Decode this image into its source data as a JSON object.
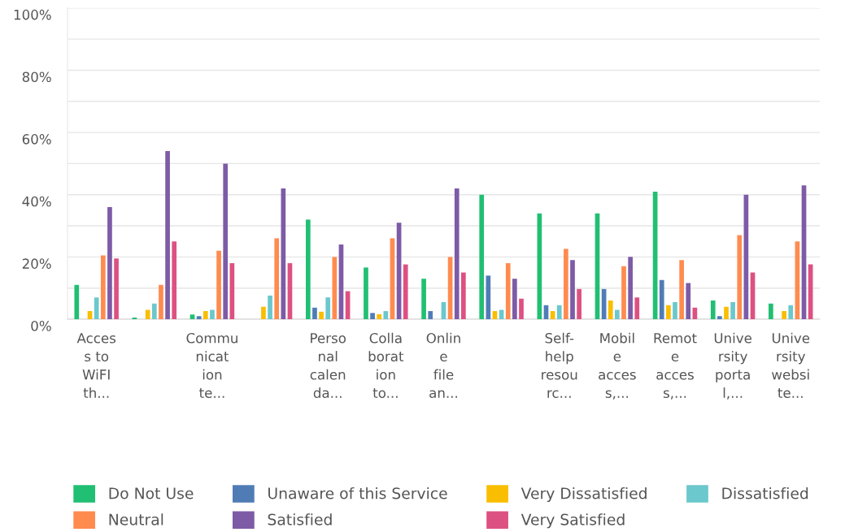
{
  "chart_data": {
    "type": "bar",
    "categories": [
      "Access to WiFI th...",
      null,
      "Communication te...",
      null,
      "Personal calenda...",
      "Collaboration to...",
      "Online file an...",
      null,
      "Self-help resourc...",
      "Mobile access,...",
      "Remote access,...",
      "University portal,...",
      "University website..."
    ],
    "series": [
      {
        "name": "Do Not Use",
        "color": "#21bf73",
        "values": [
          11,
          0.5,
          1.5,
          null,
          32,
          16.6,
          13,
          40,
          34,
          34,
          41,
          6,
          5
        ]
      },
      {
        "name": "Unaware of this Service",
        "color": "#507cb6",
        "values": [
          null,
          null,
          1,
          null,
          3.7,
          2,
          2.6,
          14,
          4.5,
          9.7,
          12.6,
          1,
          null
        ]
      },
      {
        "name": "Very Dissatisfied",
        "color": "#f9be00",
        "values": [
          2.6,
          3,
          2.6,
          4,
          2.4,
          1.6,
          null,
          2.6,
          2.6,
          6,
          4.5,
          4,
          2.6
        ]
      },
      {
        "name": "Dissatisfied",
        "color": "#6bc8cd",
        "values": [
          7,
          5,
          3,
          7.6,
          7,
          2.6,
          5.5,
          3,
          4.5,
          3,
          5.5,
          5.5,
          4.5
        ]
      },
      {
        "name": "Neutral",
        "color": "#ff8b4f",
        "values": [
          20.5,
          11,
          22,
          26,
          20,
          26,
          20,
          18,
          22.6,
          17,
          19,
          27,
          25
        ]
      },
      {
        "name": "Satisfied",
        "color": "#7d5ba6",
        "values": [
          36,
          54,
          50,
          42,
          24,
          31,
          42,
          13,
          19,
          20,
          11.6,
          40,
          43
        ]
      },
      {
        "name": "Very Satisfied",
        "color": "#dd5182",
        "values": [
          19.5,
          25,
          18,
          18,
          9,
          17.6,
          15,
          6.6,
          9.7,
          7,
          3.7,
          15,
          17.6
        ]
      }
    ],
    "ylim": [
      0,
      100
    ],
    "yticks": [
      {
        "value": 0,
        "label": "0%"
      },
      {
        "value": 10,
        "label": null
      },
      {
        "value": 20,
        "label": "20%"
      },
      {
        "value": 30,
        "label": null
      },
      {
        "value": 40,
        "label": "40%"
      },
      {
        "value": 50,
        "label": null
      },
      {
        "value": 60,
        "label": "60%"
      },
      {
        "value": 70,
        "label": null
      },
      {
        "value": 80,
        "label": "80%"
      },
      {
        "value": 90,
        "label": null
      },
      {
        "value": 100,
        "label": "100%"
      }
    ],
    "grid": "y",
    "legend": "bottom"
  }
}
